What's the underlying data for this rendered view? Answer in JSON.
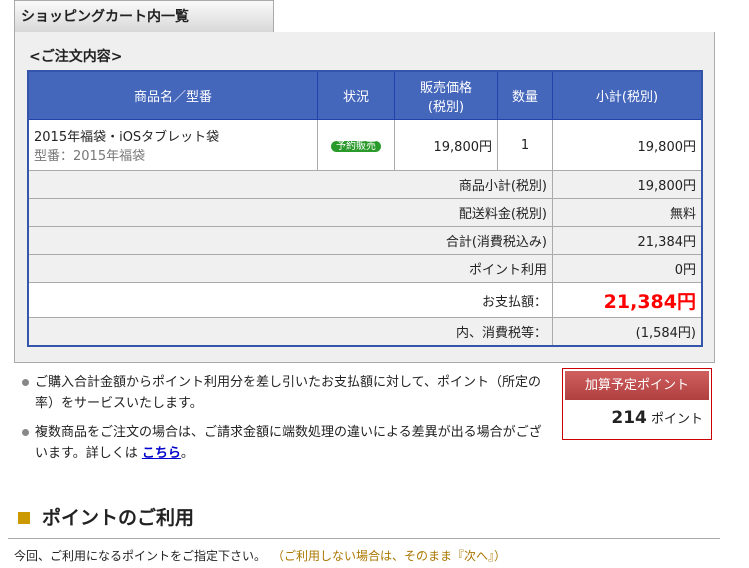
{
  "tab": "ショッピングカート内一覧",
  "subtitle": "<ご注文内容>",
  "table": {
    "headers": [
      "商品名／型番",
      "状況",
      "販売価格\n(税別)",
      "数量",
      "小計(税別)"
    ],
    "item": {
      "name": "2015年福袋・iOSタブレット袋",
      "model": "型番：2015年福袋",
      "status": "予約販売",
      "price": "19,800円",
      "qty": "1",
      "subtotal": "19,800円"
    },
    "summary": [
      {
        "label": "商品小計(税別)",
        "value": "19,800円"
      },
      {
        "label": "配送料金(税別)",
        "value": "無料"
      },
      {
        "label": "合計(消費税込み)",
        "value": "21,384円"
      },
      {
        "label": "ポイント利用",
        "value": "0円"
      },
      {
        "label": "お支払額：",
        "value": "21,384円"
      },
      {
        "label": "内、消費税等：",
        "value": "(1,584円)"
      }
    ]
  },
  "notes": {
    "n1": "ご購入合計金額からポイント利用分を差し引いたお支払額に対して、ポイント（所定の率）をサービスいたします。",
    "n2": "複数商品をご注文の場合は、ご請求金額に端数処理の違いによる差異が出る場合がございます。詳しくは ",
    "link": "こちら",
    "end": "。"
  },
  "points": {
    "title": "加算予定ポイント",
    "value": "214",
    "unit": " ポイント"
  },
  "section": {
    "title": "ポイントのご利用",
    "text": "今回、ご利用になるポイントをご指定下さい。",
    "hint": "（ご利用しない場合は、そのまま『次へ』）"
  },
  "colors": {
    "header": "#4466bb",
    "total": "#ff0000",
    "badge": "#2a9a2a"
  }
}
